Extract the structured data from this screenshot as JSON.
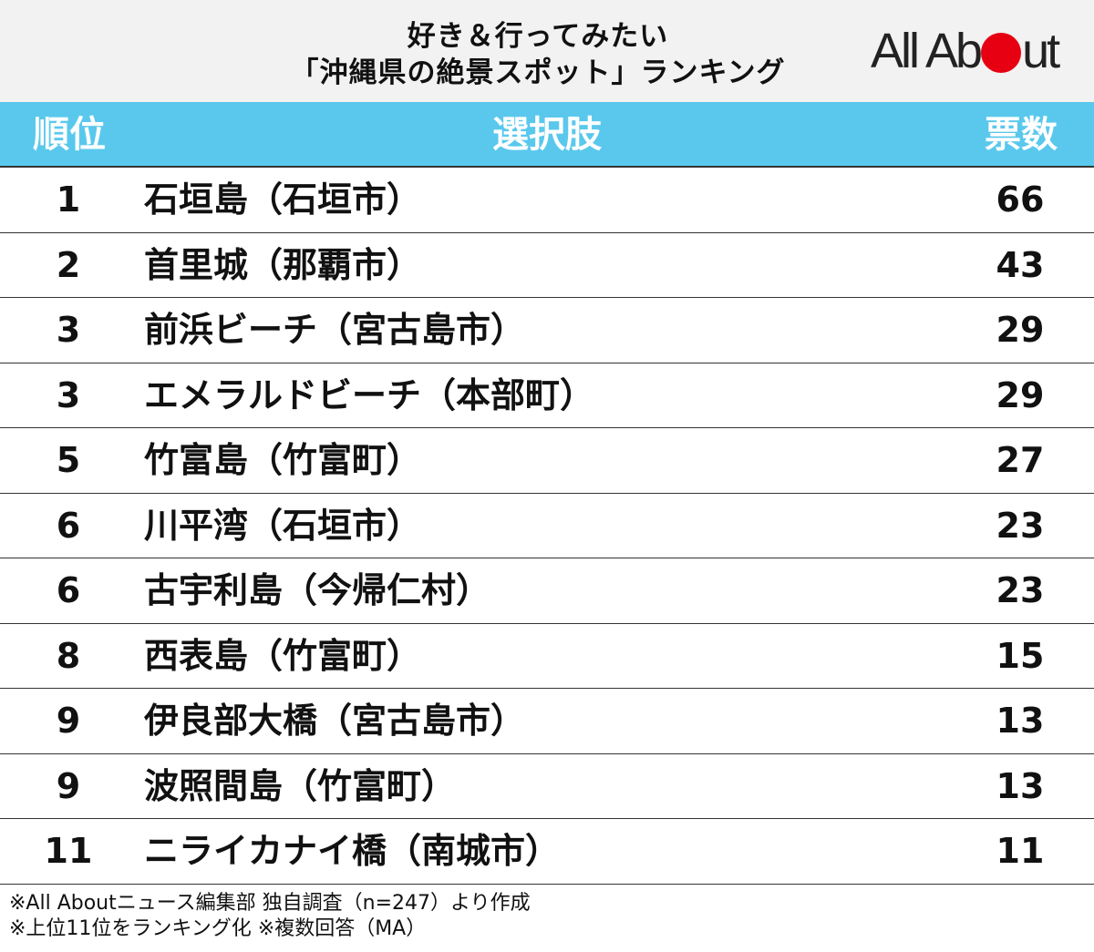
{
  "title": {
    "line1": "好き＆行ってみたい",
    "line2": "「沖縄県の絶景スポット」ランキング"
  },
  "logo": {
    "part1": "All Ab",
    "part2": "ut",
    "dot_color": "#e60012"
  },
  "colors": {
    "header_bar": "#5ac8ed"
  },
  "chart_data": {
    "type": "table",
    "title": "好き＆行ってみたい「沖縄県の絶景スポット」ランキング",
    "columns": [
      "順位",
      "選択肢",
      "票数"
    ],
    "rows": [
      {
        "rank": "1",
        "choice": "石垣島（石垣市）",
        "votes": "66"
      },
      {
        "rank": "2",
        "choice": "首里城（那覇市）",
        "votes": "43"
      },
      {
        "rank": "3",
        "choice": "前浜ビーチ（宮古島市）",
        "votes": "29"
      },
      {
        "rank": "3",
        "choice": "エメラルドビーチ（本部町）",
        "votes": "29"
      },
      {
        "rank": "5",
        "choice": "竹富島（竹富町）",
        "votes": "27"
      },
      {
        "rank": "6",
        "choice": "川平湾（石垣市）",
        "votes": "23"
      },
      {
        "rank": "6",
        "choice": "古宇利島（今帰仁村）",
        "votes": "23"
      },
      {
        "rank": "8",
        "choice": "西表島（竹富町）",
        "votes": "15"
      },
      {
        "rank": "9",
        "choice": "伊良部大橋（宮古島市）",
        "votes": "13"
      },
      {
        "rank": "9",
        "choice": "波照間島（竹富町）",
        "votes": "13"
      },
      {
        "rank": "11",
        "choice": "ニライカナイ橋（南城市）",
        "votes": "11"
      }
    ]
  },
  "footer": {
    "line1": "※All Aboutニュース編集部 独自調査（n=247）より作成",
    "line2": "※上位11位をランキング化 ※複数回答（MA）"
  }
}
